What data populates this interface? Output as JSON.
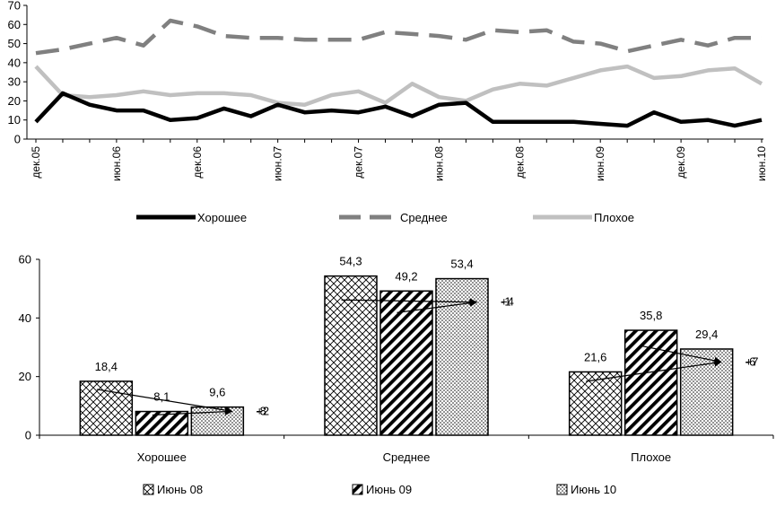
{
  "chart_data": [
    {
      "type": "line",
      "title": "",
      "xlabel": "",
      "ylabel": "",
      "ylim": [
        0,
        70
      ],
      "yticks": [
        0,
        10,
        20,
        30,
        40,
        50,
        60,
        70
      ],
      "xtick_labels": [
        "дек.05",
        "июн.06",
        "дек.06",
        "июн.07",
        "дек.07",
        "июн.08",
        "дек.08",
        "июн.09",
        "дек.09",
        "июн.10"
      ],
      "legend_position": "bottom",
      "series": [
        {
          "name": "Хорошее",
          "style": "solid",
          "color": "#000000",
          "values": [
            9,
            24,
            18,
            15,
            15,
            10,
            11,
            16,
            12,
            18,
            14,
            15,
            14,
            17,
            12,
            18,
            19,
            9,
            9,
            9,
            9,
            8,
            7,
            14,
            9,
            10,
            7,
            10
          ]
        },
        {
          "name": "Среднее",
          "style": "dashed",
          "color": "#808080",
          "values": [
            45,
            47,
            50,
            53,
            49,
            62,
            59,
            54,
            53,
            53,
            52,
            52,
            52,
            56,
            55,
            54,
            52,
            57,
            56,
            57,
            51,
            50,
            46,
            49,
            52,
            49,
            53,
            53
          ]
        },
        {
          "name": "Плохое",
          "style": "solid",
          "color": "#c0c0c0",
          "values": [
            38,
            23,
            22,
            23,
            25,
            23,
            24,
            24,
            23,
            19,
            18,
            23,
            25,
            19,
            29,
            22,
            20,
            26,
            29,
            28,
            32,
            36,
            38,
            32,
            33,
            36,
            37,
            29
          ]
        }
      ]
    },
    {
      "type": "bar",
      "title": "",
      "xlabel": "",
      "ylabel": "",
      "ylim": [
        0,
        60
      ],
      "yticks": [
        0,
        20,
        40,
        60
      ],
      "categories": [
        "Хорошее",
        "Среднее",
        "Плохое"
      ],
      "legend_position": "bottom",
      "series": [
        {
          "name": "Июнь 08",
          "pattern": "crosshatch",
          "values": [
            18.4,
            54.3,
            21.6
          ],
          "labels": [
            "18,4",
            "54,3",
            "21,6"
          ]
        },
        {
          "name": "Июнь 09",
          "pattern": "diagonal",
          "values": [
            8.1,
            49.2,
            35.8
          ],
          "labels": [
            "8,1",
            "49,2",
            "35,8"
          ]
        },
        {
          "name": "Июнь 10",
          "pattern": "dots",
          "values": [
            9.6,
            53.4,
            29.4
          ],
          "labels": [
            "9,6",
            "53,4",
            "29,4"
          ]
        }
      ],
      "annotations": [
        {
          "category": "Хорошее",
          "text": "-8",
          "arrow_from": "Июнь 08",
          "arrow_to": "Июнь 10"
        },
        {
          "category": "Хорошее",
          "text": "+2",
          "arrow_from": "Июнь 09",
          "arrow_to": "Июнь 10"
        },
        {
          "category": "Среднее",
          "text": "-1",
          "arrow_from": "Июнь 08",
          "arrow_to": "Июнь 10"
        },
        {
          "category": "Среднее",
          "text": "+4",
          "arrow_from": "Июнь 09",
          "arrow_to": "Июнь 10"
        },
        {
          "category": "Плохое",
          "text": "+7",
          "arrow_from": "Июнь 08",
          "arrow_to": "Июнь 10"
        },
        {
          "category": "Плохое",
          "text": "-6",
          "arrow_from": "Июнь 09",
          "arrow_to": "Июнь 10"
        }
      ]
    }
  ]
}
